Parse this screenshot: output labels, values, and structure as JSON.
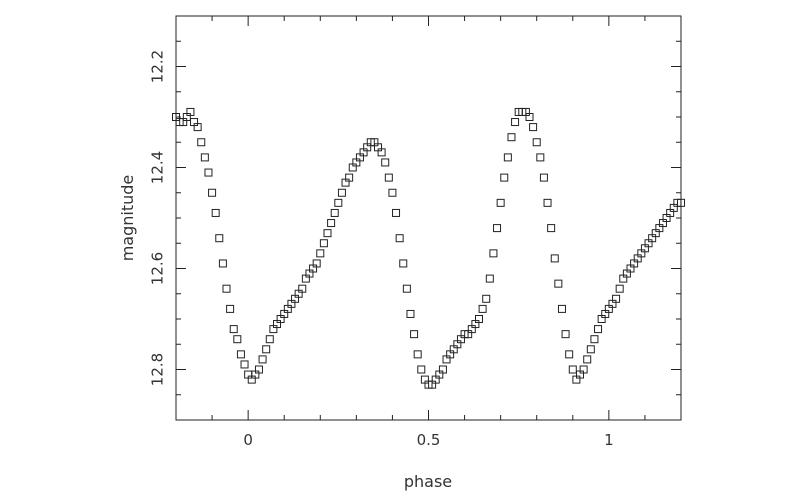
{
  "chart_data": {
    "type": "scatter",
    "title": "",
    "xlabel": "phase",
    "ylabel": "magnitude",
    "xlim": [
      -0.2,
      1.2
    ],
    "ylim": [
      12.9,
      12.1
    ],
    "y_inverted": true,
    "grid": false,
    "marker": "open-square",
    "x_ticks": [
      {
        "value": 0,
        "label": "0"
      },
      {
        "value": 0.5,
        "label": "0.5"
      },
      {
        "value": 1,
        "label": "1"
      }
    ],
    "y_ticks": [
      {
        "value": 12.2,
        "label": "12.2"
      },
      {
        "value": 12.4,
        "label": "12.4"
      },
      {
        "value": 12.6,
        "label": "12.6"
      },
      {
        "value": 12.8,
        "label": "12.8"
      }
    ],
    "series": [
      {
        "x": [
          -0.2,
          -0.19,
          -0.18,
          -0.17,
          -0.16,
          -0.15,
          -0.14,
          -0.13,
          -0.12,
          -0.11,
          -0.1,
          -0.09,
          -0.08,
          -0.07,
          -0.06,
          -0.05,
          -0.04,
          -0.03,
          -0.02,
          -0.01,
          0.0,
          0.01,
          0.02,
          0.03,
          0.04,
          0.05,
          0.06,
          0.07,
          0.08,
          0.09,
          0.1,
          0.11,
          0.12,
          0.13,
          0.14,
          0.15,
          0.16,
          0.17,
          0.18,
          0.19,
          0.2,
          0.21,
          0.22,
          0.23,
          0.24,
          0.25,
          0.26,
          0.27,
          0.28,
          0.29,
          0.3,
          0.31,
          0.32,
          0.33,
          0.34,
          0.35,
          0.36,
          0.37,
          0.38,
          0.39,
          0.4,
          0.41,
          0.42,
          0.43,
          0.44,
          0.45,
          0.46,
          0.47,
          0.48,
          0.49,
          0.5,
          0.51,
          0.52,
          0.53,
          0.54,
          0.55,
          0.56,
          0.57,
          0.58,
          0.59,
          0.6,
          0.61,
          0.62,
          0.63,
          0.64,
          0.65,
          0.66,
          0.67,
          0.68,
          0.69,
          0.7,
          0.71,
          0.72,
          0.73,
          0.74,
          0.75,
          0.76,
          0.77,
          0.78,
          0.79,
          0.8,
          0.81,
          0.82,
          0.83,
          0.84,
          0.85,
          0.86,
          0.87,
          0.88,
          0.89,
          0.9,
          0.91,
          0.92,
          0.93,
          0.94,
          0.95,
          0.96,
          0.97,
          0.98,
          0.99,
          1.0,
          1.01,
          1.02,
          1.03,
          1.04,
          1.05,
          1.06,
          1.07,
          1.08,
          1.09,
          1.1,
          1.11,
          1.12,
          1.13,
          1.14,
          1.15,
          1.16,
          1.17,
          1.18,
          1.19,
          1.2
        ],
        "y": [
          12.3,
          12.31,
          12.31,
          12.3,
          12.29,
          12.31,
          12.32,
          12.35,
          12.38,
          12.41,
          12.45,
          12.49,
          12.54,
          12.59,
          12.64,
          12.68,
          12.72,
          12.74,
          12.77,
          12.79,
          12.81,
          12.82,
          12.81,
          12.8,
          12.78,
          12.76,
          12.74,
          12.72,
          12.71,
          12.7,
          12.69,
          12.68,
          12.67,
          12.66,
          12.65,
          12.64,
          12.62,
          12.61,
          12.6,
          12.59,
          12.57,
          12.55,
          12.53,
          12.51,
          12.49,
          12.47,
          12.45,
          12.43,
          12.42,
          12.4,
          12.39,
          12.38,
          12.37,
          12.36,
          12.35,
          12.35,
          12.36,
          12.37,
          12.39,
          12.42,
          12.45,
          12.49,
          12.54,
          12.59,
          12.64,
          12.69,
          12.73,
          12.77,
          12.8,
          12.82,
          12.83,
          12.83,
          12.82,
          12.81,
          12.8,
          12.78,
          12.77,
          12.76,
          12.75,
          12.74,
          12.73,
          12.73,
          12.72,
          12.71,
          12.7,
          12.68,
          12.66,
          12.62,
          12.57,
          12.52,
          12.47,
          12.42,
          12.38,
          12.34,
          12.31,
          12.29,
          12.29,
          12.29,
          12.3,
          12.32,
          12.35,
          12.38,
          12.42,
          12.47,
          12.52,
          12.58,
          12.63,
          12.68,
          12.73,
          12.77,
          12.8,
          12.82,
          12.81,
          12.8,
          12.78,
          12.76,
          12.74,
          12.72,
          12.7,
          12.69,
          12.68,
          12.67,
          12.66,
          12.64,
          12.62,
          12.61,
          12.6,
          12.59,
          12.58,
          12.57,
          12.56,
          12.55,
          12.54,
          12.53,
          12.52,
          12.51,
          12.5,
          12.49,
          12.48,
          12.47,
          12.47
        ]
      }
    ]
  }
}
